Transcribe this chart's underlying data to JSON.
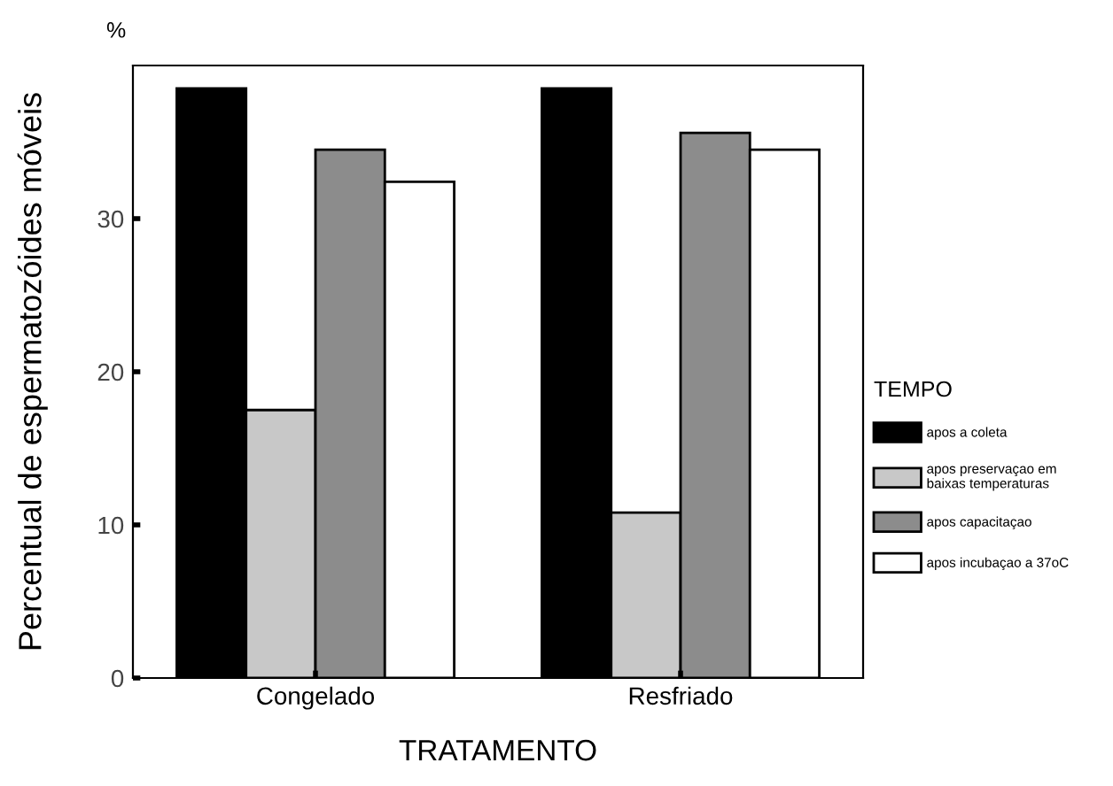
{
  "chart_data": {
    "type": "bar",
    "xlabel": "TRATAMENTO",
    "ylabel": "Percentual de espermatozóides móveis",
    "legend_title": "TEMPO",
    "annotations": [
      "%"
    ],
    "categories": [
      "Congelado",
      "Resfriado"
    ],
    "series": [
      {
        "name": "apos a coleta",
        "color": "#000000",
        "values": [
          38.5,
          38.5
        ]
      },
      {
        "name": "apos preservaçao em\nbaixas temperaturas",
        "color": "#c8c8c8",
        "values": [
          17.5,
          10.8
        ]
      },
      {
        "name": "apos capacitaçao",
        "color": "#8c8c8c",
        "values": [
          34.5,
          35.6
        ]
      },
      {
        "name": "apos incubaçao a 37oC",
        "color": "#ffffff",
        "values": [
          32.4,
          34.5
        ]
      }
    ],
    "ylim": [
      0,
      40
    ],
    "yticks": [
      0,
      10,
      20,
      30
    ],
    "grid": false,
    "legend": "right"
  }
}
